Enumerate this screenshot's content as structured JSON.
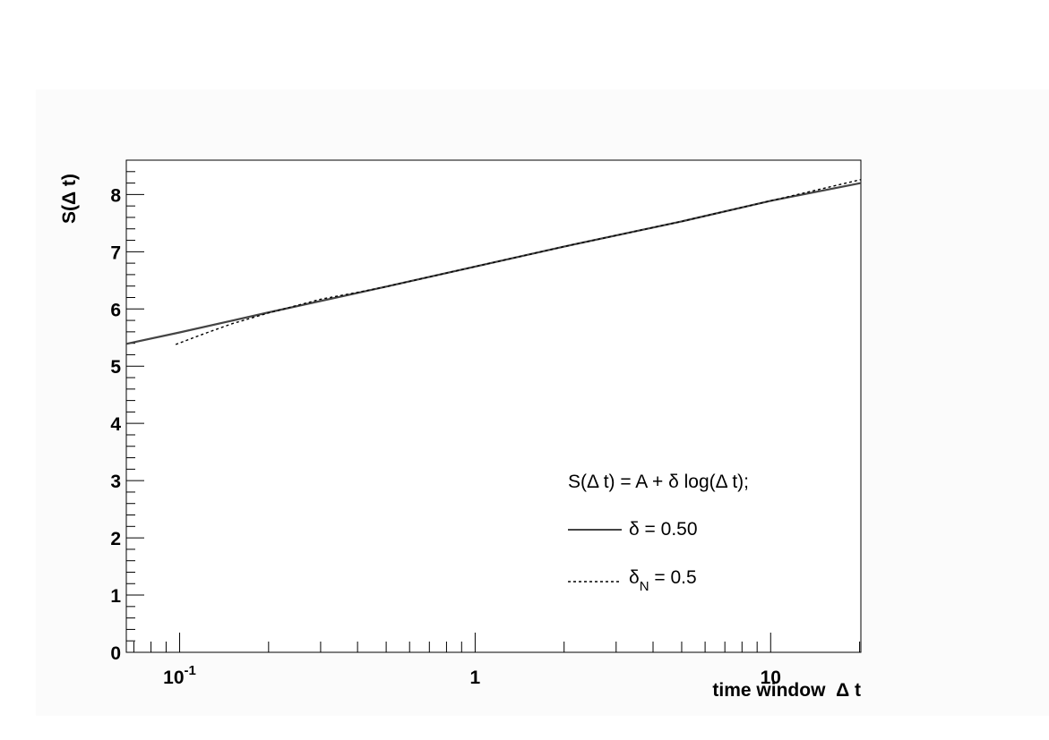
{
  "chart_data": {
    "type": "line",
    "xlabel": "time window  Δ t",
    "ylabel": "S(Δ t)",
    "x_scale": "log",
    "xlim": [
      0.066,
      20.2
    ],
    "ylim": [
      0,
      8.6
    ],
    "grid": false,
    "x_ticks": [
      {
        "value": 0.1,
        "base": "10",
        "exp": "-1"
      },
      {
        "value": 1,
        "base": "1",
        "exp": ""
      },
      {
        "value": 10,
        "base": "10",
        "exp": ""
      }
    ],
    "y_ticks": [
      {
        "value": 0,
        "label": "0"
      },
      {
        "value": 1,
        "label": "1"
      },
      {
        "value": 2,
        "label": "2"
      },
      {
        "value": 3,
        "label": "3"
      },
      {
        "value": 4,
        "label": "4"
      },
      {
        "value": 5,
        "label": "5"
      },
      {
        "value": 6,
        "label": "6"
      },
      {
        "value": 7,
        "label": "7"
      },
      {
        "value": 8,
        "label": "8"
      }
    ],
    "series": [
      {
        "name": "δ = 0.50",
        "style": "solid",
        "color": "#444444",
        "x": [
          0.066,
          0.1,
          0.2,
          0.5,
          1,
          2,
          5,
          10,
          20.2
        ],
        "y": [
          5.39,
          5.59,
          5.94,
          6.39,
          6.74,
          7.09,
          7.53,
          7.89,
          8.2
        ]
      },
      {
        "name": "δN = 0.5",
        "style": "dashed",
        "color": "#000000",
        "x": [
          0.097,
          0.12,
          0.15,
          0.2,
          0.3,
          0.4,
          0.5,
          1,
          2,
          5,
          10,
          20.2
        ],
        "y": [
          5.38,
          5.56,
          5.74,
          5.93,
          6.17,
          6.29,
          6.39,
          6.74,
          7.09,
          7.53,
          7.89,
          8.26
        ]
      }
    ],
    "legend": {
      "position": "bottom-right",
      "formula": "S(Δ t) = A + δ log(Δ t);",
      "entries": [
        {
          "style": "solid",
          "symbol": "δ",
          "sub": "",
          "text": " = 0.50"
        },
        {
          "style": "dashed",
          "symbol": "δ",
          "sub": "N",
          "text": " = 0.5"
        }
      ]
    }
  }
}
